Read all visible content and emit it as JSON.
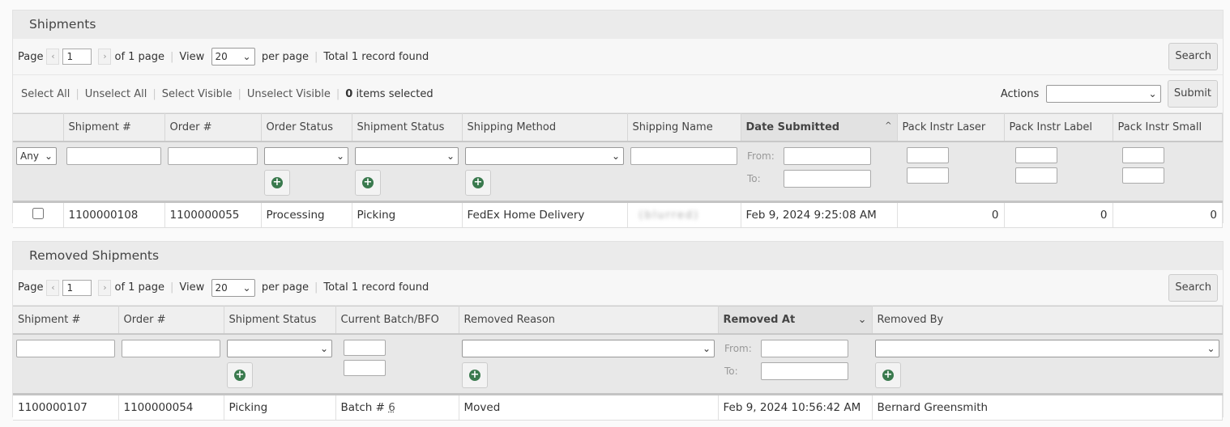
{
  "shipments": {
    "title": "Shipments",
    "pager": {
      "page_label": "Page",
      "page": "1",
      "of_pages": "of 1 page",
      "view_label": "View",
      "per_page": "20",
      "per_page_label": "per page",
      "total": "Total 1 record found"
    },
    "search_label": "Search",
    "massaction": {
      "select_all": "Select All",
      "unselect_all": "Unselect All",
      "select_visible": "Select Visible",
      "unselect_visible": "Unselect Visible",
      "count": "0",
      "selected_label": "items selected",
      "actions_label": "Actions",
      "submit_label": "Submit"
    },
    "columns": [
      "Shipment #",
      "Order #",
      "Order Status",
      "Shipment Status",
      "Shipping Method",
      "Shipping Name",
      "Date Submitted",
      "Pack Instr Laser",
      "Pack Instr Label",
      "Pack Instr Small"
    ],
    "sorted_column": "Date Submitted",
    "sort_direction": "ascending",
    "filter": {
      "any": "Any",
      "from": "From:",
      "to": "To:"
    },
    "rows": [
      {
        "shipment": "1100000108",
        "order": "1100000055",
        "order_status": "Processing",
        "shipment_status": "Picking",
        "shipping_method": "FedEx Home Delivery",
        "shipping_name": "(blurred)",
        "date": "Feb 9, 2024 9:25:08 AM",
        "laser": "0",
        "label": "0",
        "small": "0"
      }
    ]
  },
  "removed": {
    "title": "Removed Shipments",
    "pager": {
      "page_label": "Page",
      "page": "1",
      "of_pages": "of 1 page",
      "view_label": "View",
      "per_page": "20",
      "per_page_label": "per page",
      "total": "Total 1 record found"
    },
    "search_label": "Search",
    "columns": [
      "Shipment #",
      "Order #",
      "Shipment Status",
      "Current Batch/BFO",
      "Removed Reason",
      "Removed At",
      "Removed By"
    ],
    "sorted_column": "Removed At",
    "sort_direction": "descending",
    "filter": {
      "from": "From:",
      "to": "To:"
    },
    "rows": [
      {
        "shipment": "1100000107",
        "order": "1100000054",
        "status": "Picking",
        "batch_prefix": "Batch # ",
        "batch_link": "6",
        "reason": "Moved",
        "removed_at": "Feb 9, 2024 10:56:42 AM",
        "removed_by": "Bernard Greensmith"
      }
    ]
  },
  "colors": {
    "add_icon": "#3a7a4e",
    "header_bg": "#ebebeb",
    "sorted_header_bg": "#e2e2e2"
  }
}
